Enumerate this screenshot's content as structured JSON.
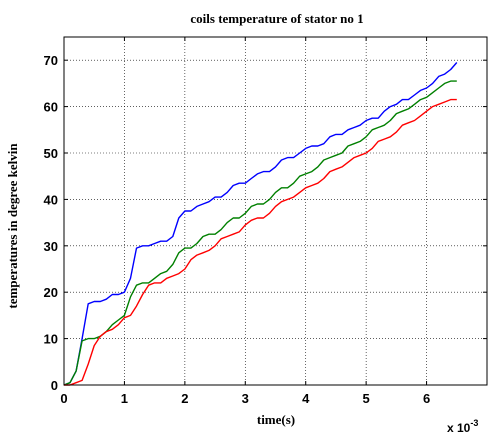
{
  "chart_data": {
    "type": "line",
    "title": "coils temperature of stator no 1",
    "xlabel": "time(s)",
    "ylabel": "temperatures in degree kelvin",
    "x_multiplier_base": "x 10",
    "x_multiplier_exponent": "-3",
    "xlim": [
      0,
      7
    ],
    "ylim": [
      0,
      75
    ],
    "xticks": [
      0,
      1,
      2,
      3,
      4,
      5,
      6
    ],
    "yticks": [
      0,
      10,
      20,
      30,
      40,
      50,
      60,
      70
    ],
    "grid": true,
    "series": [
      {
        "color": "#0000ff",
        "x": [
          0,
          0.1,
          0.2,
          0.3,
          0.4,
          0.5,
          0.6,
          0.7,
          0.8,
          0.9,
          1.0,
          1.1,
          1.2,
          1.3,
          1.4,
          1.5,
          1.6,
          1.7,
          1.8,
          1.9,
          2.0,
          2.1,
          2.2,
          2.3,
          2.4,
          2.5,
          2.6,
          2.7,
          2.8,
          2.9,
          3.0,
          3.1,
          3.2,
          3.3,
          3.4,
          3.5,
          3.6,
          3.7,
          3.8,
          3.9,
          4.0,
          4.1,
          4.2,
          4.3,
          4.4,
          4.5,
          4.6,
          4.7,
          4.8,
          4.9,
          5.0,
          5.1,
          5.2,
          5.3,
          5.4,
          5.5,
          5.6,
          5.7,
          5.8,
          5.9,
          6.0,
          6.1,
          6.2,
          6.3,
          6.4,
          6.5
        ],
        "values": [
          0,
          0.5,
          3,
          10,
          17.5,
          18,
          18,
          18.5,
          19.5,
          19.5,
          20,
          23,
          29.5,
          30,
          30,
          30.5,
          31,
          31,
          32,
          36,
          37.5,
          37.5,
          38.5,
          39,
          39.5,
          40.5,
          40.5,
          41.5,
          43,
          43.5,
          43.5,
          44.5,
          45.5,
          46,
          46,
          47,
          48.5,
          49,
          49,
          50,
          51,
          51.5,
          51.5,
          52,
          53.5,
          54,
          54,
          55,
          55.5,
          56,
          57,
          57.5,
          57.5,
          59,
          60,
          60.5,
          61.5,
          61.5,
          62.5,
          63.5,
          64,
          65,
          66.5,
          67,
          68,
          69.5
        ]
      },
      {
        "color": "#008000",
        "x": [
          0,
          0.1,
          0.2,
          0.3,
          0.4,
          0.5,
          0.6,
          0.7,
          0.8,
          0.9,
          1.0,
          1.1,
          1.2,
          1.3,
          1.4,
          1.5,
          1.6,
          1.7,
          1.8,
          1.9,
          2.0,
          2.1,
          2.2,
          2.3,
          2.4,
          2.5,
          2.6,
          2.7,
          2.8,
          2.9,
          3.0,
          3.1,
          3.2,
          3.3,
          3.4,
          3.5,
          3.6,
          3.7,
          3.8,
          3.9,
          4.0,
          4.1,
          4.2,
          4.3,
          4.4,
          4.5,
          4.6,
          4.7,
          4.8,
          4.9,
          5.0,
          5.1,
          5.2,
          5.3,
          5.4,
          5.5,
          5.6,
          5.7,
          5.8,
          5.9,
          6.0,
          6.1,
          6.2,
          6.3,
          6.4,
          6.5
        ],
        "values": [
          0,
          0.5,
          3,
          9.5,
          10,
          10,
          10.5,
          11.5,
          13,
          14,
          15,
          19,
          21.5,
          22,
          22,
          23,
          24,
          24.5,
          26,
          28.5,
          29.5,
          29.5,
          30.5,
          32,
          32.5,
          32.5,
          33.5,
          35,
          36,
          36,
          37,
          38.5,
          39,
          39,
          40,
          41.5,
          42.5,
          42.5,
          43.5,
          45,
          45.5,
          46,
          47,
          48.5,
          49,
          49.5,
          50,
          51.5,
          52,
          52.5,
          53.5,
          55,
          55.5,
          56,
          57,
          58.5,
          59,
          59.5,
          60.5,
          61.5,
          62,
          63,
          64,
          65,
          65.5,
          65.5
        ]
      },
      {
        "color": "#ff0000",
        "x": [
          0,
          0.1,
          0.2,
          0.3,
          0.4,
          0.5,
          0.6,
          0.7,
          0.8,
          0.9,
          1.0,
          1.1,
          1.2,
          1.3,
          1.4,
          1.5,
          1.6,
          1.7,
          1.8,
          1.9,
          2.0,
          2.1,
          2.2,
          2.3,
          2.4,
          2.5,
          2.6,
          2.7,
          2.8,
          2.9,
          3.0,
          3.1,
          3.2,
          3.3,
          3.4,
          3.5,
          3.6,
          3.7,
          3.8,
          3.9,
          4.0,
          4.1,
          4.2,
          4.3,
          4.4,
          4.5,
          4.6,
          4.7,
          4.8,
          4.9,
          5.0,
          5.1,
          5.2,
          5.3,
          5.4,
          5.5,
          5.6,
          5.7,
          5.8,
          5.9,
          6.0,
          6.1,
          6.2,
          6.3,
          6.4,
          6.5
        ],
        "values": [
          0,
          0,
          0.5,
          1,
          4.5,
          8.5,
          10.5,
          11.5,
          12,
          13,
          14.5,
          15,
          17,
          19.5,
          21.5,
          22,
          22,
          23,
          23.5,
          24,
          25,
          27,
          28,
          28.5,
          29,
          30,
          31.5,
          32,
          32.5,
          33,
          34.5,
          35.5,
          36,
          36,
          37,
          38.5,
          39.5,
          40,
          40.5,
          41.5,
          42.5,
          43,
          43.5,
          44.5,
          46,
          46.5,
          47,
          48,
          49,
          49.5,
          50,
          51,
          52.5,
          53,
          53.5,
          54.5,
          56,
          56.5,
          57,
          58,
          59,
          60,
          60.5,
          61,
          61.5,
          61.5
        ]
      }
    ]
  }
}
